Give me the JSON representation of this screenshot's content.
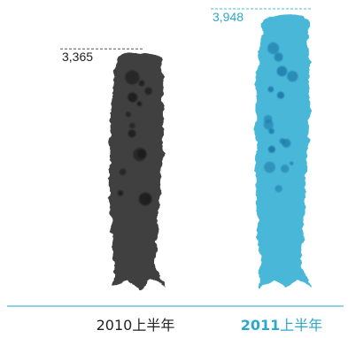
{
  "chart_data": {
    "type": "bar",
    "title": "",
    "xlabel": "",
    "ylabel": "",
    "categories": [
      "2010上半年",
      "2011上半年"
    ],
    "category_parts": [
      {
        "year": "2010",
        "suffix": "上半年"
      },
      {
        "year": "2011",
        "suffix": "上半年"
      }
    ],
    "values": [
      3365,
      3948
    ],
    "value_labels": [
      "3,365",
      "3,948"
    ],
    "ylim": [
      0,
      3948
    ],
    "legend": "none",
    "grid": false,
    "highlight_index": 1,
    "colors": {
      "bar_default": "#404040",
      "bar_default_spots": "#1a1a1a",
      "bar_highlight": "#4ab8d8",
      "bar_highlight_spots": "#1e78a8",
      "label_default": "#222222",
      "label_highlight": "#2ea7cc",
      "baseline": "#4ab8d8",
      "leader_default": "#555555",
      "leader_highlight": "#4ab8d8"
    }
  }
}
